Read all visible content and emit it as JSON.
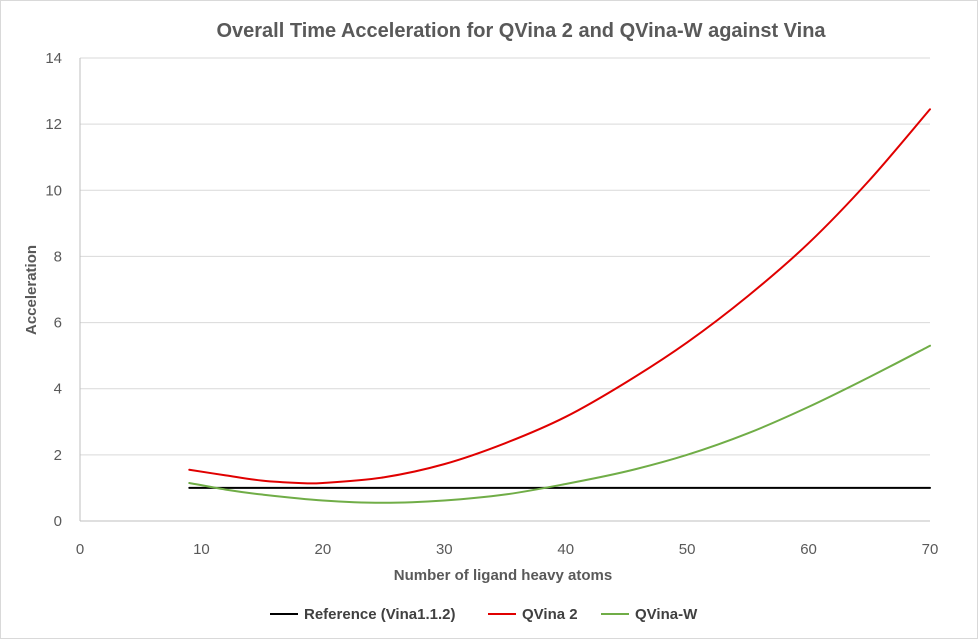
{
  "chart_data": {
    "type": "line",
    "title": "Overall Time Acceleration for QVina 2 and QVina-W against Vina",
    "xlabel": "Number of ligand heavy atoms",
    "ylabel": "Acceleration",
    "xlim": [
      0,
      70
    ],
    "ylim": [
      0,
      14
    ],
    "x_ticks": [
      "0",
      "10",
      "20",
      "30",
      "40",
      "50",
      "60",
      "70"
    ],
    "y_ticks": [
      "0",
      "2",
      "4",
      "6",
      "8",
      "10",
      "12",
      "14"
    ],
    "grid": true,
    "legend_position": "bottom",
    "series": [
      {
        "name": "Reference (Vina1.1.2)",
        "color": "#000000",
        "points": [
          [
            9,
            1.0
          ],
          [
            70,
            1.0
          ]
        ]
      },
      {
        "name": "QVina 2",
        "color": "#e00000",
        "points": [
          [
            9,
            1.55
          ],
          [
            12,
            1.38
          ],
          [
            15,
            1.22
          ],
          [
            18,
            1.15
          ],
          [
            20,
            1.15
          ],
          [
            25,
            1.32
          ],
          [
            30,
            1.72
          ],
          [
            35,
            2.35
          ],
          [
            40,
            3.15
          ],
          [
            45,
            4.2
          ],
          [
            50,
            5.4
          ],
          [
            55,
            6.8
          ],
          [
            60,
            8.4
          ],
          [
            65,
            10.3
          ],
          [
            70,
            12.45
          ]
        ]
      },
      {
        "name": "QVina-W",
        "color": "#70ad47",
        "points": [
          [
            9,
            1.15
          ],
          [
            12,
            0.95
          ],
          [
            15,
            0.8
          ],
          [
            20,
            0.62
          ],
          [
            25,
            0.55
          ],
          [
            30,
            0.62
          ],
          [
            35,
            0.8
          ],
          [
            40,
            1.12
          ],
          [
            45,
            1.5
          ],
          [
            50,
            2.0
          ],
          [
            55,
            2.65
          ],
          [
            60,
            3.45
          ],
          [
            65,
            4.35
          ],
          [
            70,
            5.3
          ]
        ]
      }
    ]
  }
}
